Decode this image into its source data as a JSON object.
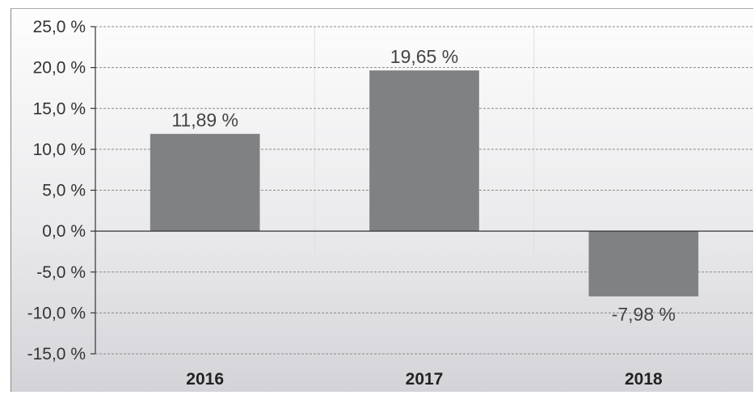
{
  "chart_data": {
    "type": "bar",
    "categories": [
      "2016",
      "2017",
      "2018"
    ],
    "values": [
      11.89,
      19.65,
      -7.98
    ],
    "value_labels": [
      "11,89 %",
      "19,65 %",
      "-7,98 %"
    ],
    "title": "",
    "xlabel": "",
    "ylabel": "",
    "ylim": [
      -15,
      25
    ],
    "yticks": [
      25,
      20,
      15,
      10,
      5,
      0,
      -5,
      -10,
      -15
    ],
    "ytick_labels": [
      "25,0 %",
      "20,0 %",
      "15,0 %",
      "10,0 %",
      "5,0 %",
      "0,0 %",
      "-5,0 %",
      "-10,0 %",
      "-15,0 %"
    ],
    "grid": true,
    "legend": "none",
    "colors": {
      "bar": "#7f8183",
      "grid": "#8a8a8a",
      "axis": "#333333",
      "background_top": "#fdfdfd",
      "background_bottom": "#d4d3d8"
    }
  }
}
